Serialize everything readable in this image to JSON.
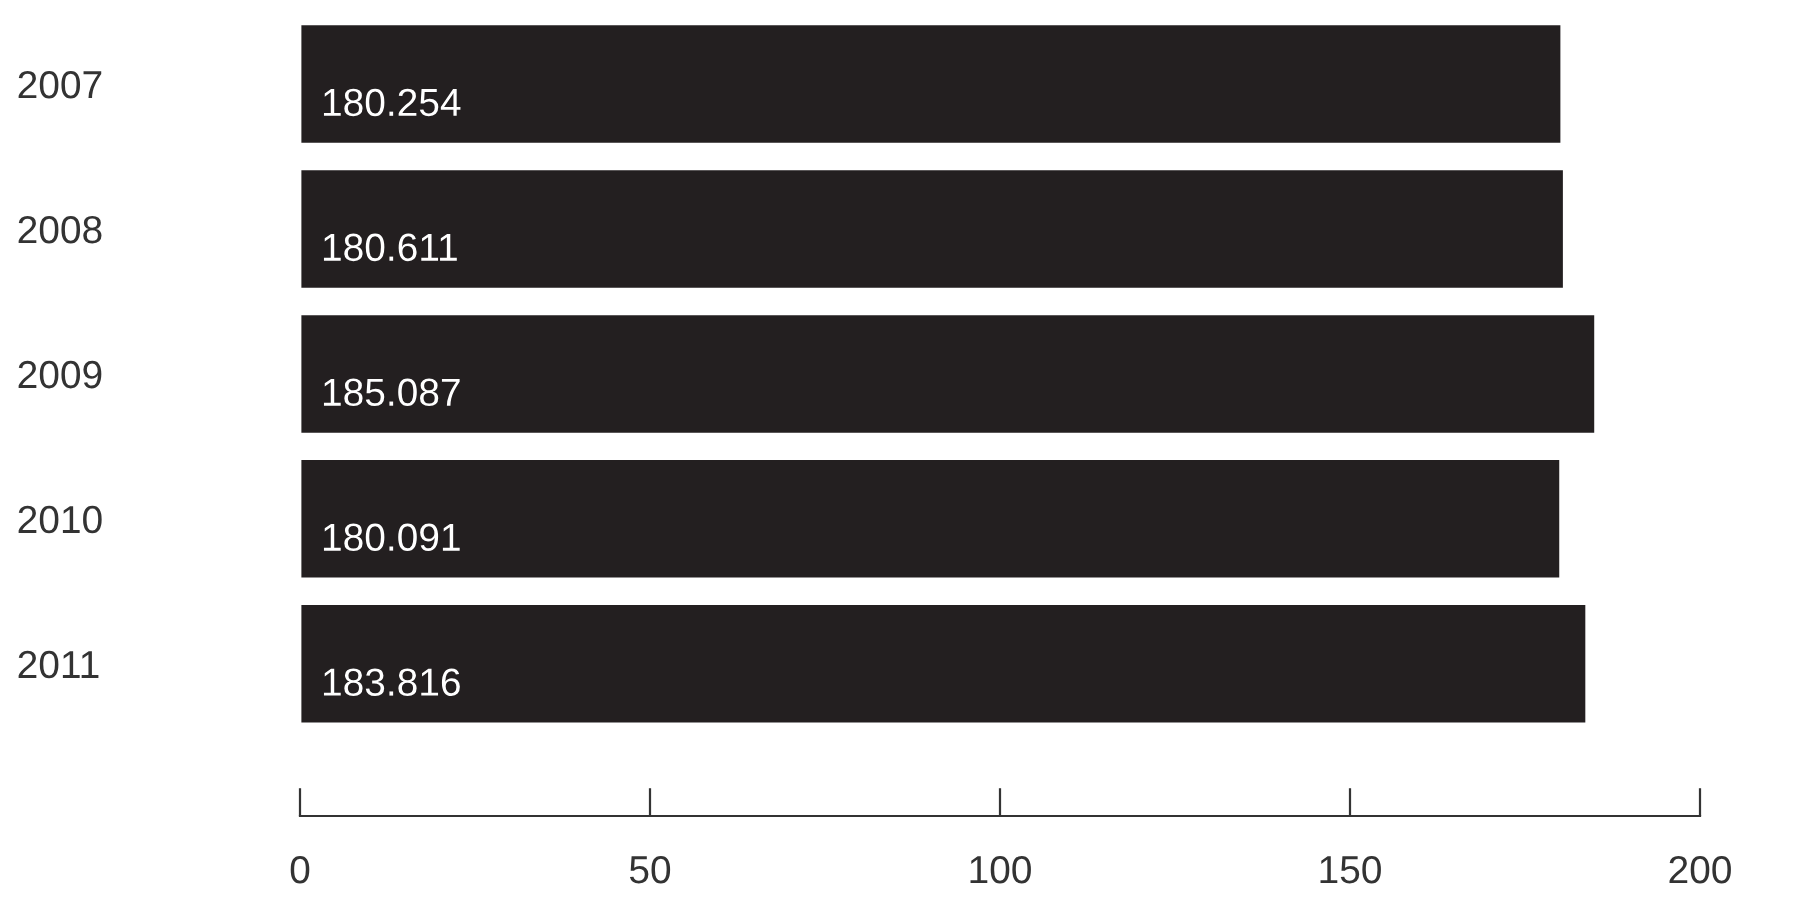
{
  "chart_data": {
    "type": "bar",
    "orientation": "horizontal",
    "categories": [
      "2007",
      "2008",
      "2009",
      "2010",
      "2011"
    ],
    "values": [
      180.254,
      180.611,
      185.087,
      180.091,
      183.816
    ],
    "color": "#231f20",
    "xlim": [
      0,
      200
    ],
    "xticks": [
      0,
      50,
      100,
      150,
      200
    ],
    "data_labels": true,
    "grid": false,
    "legend": false
  }
}
